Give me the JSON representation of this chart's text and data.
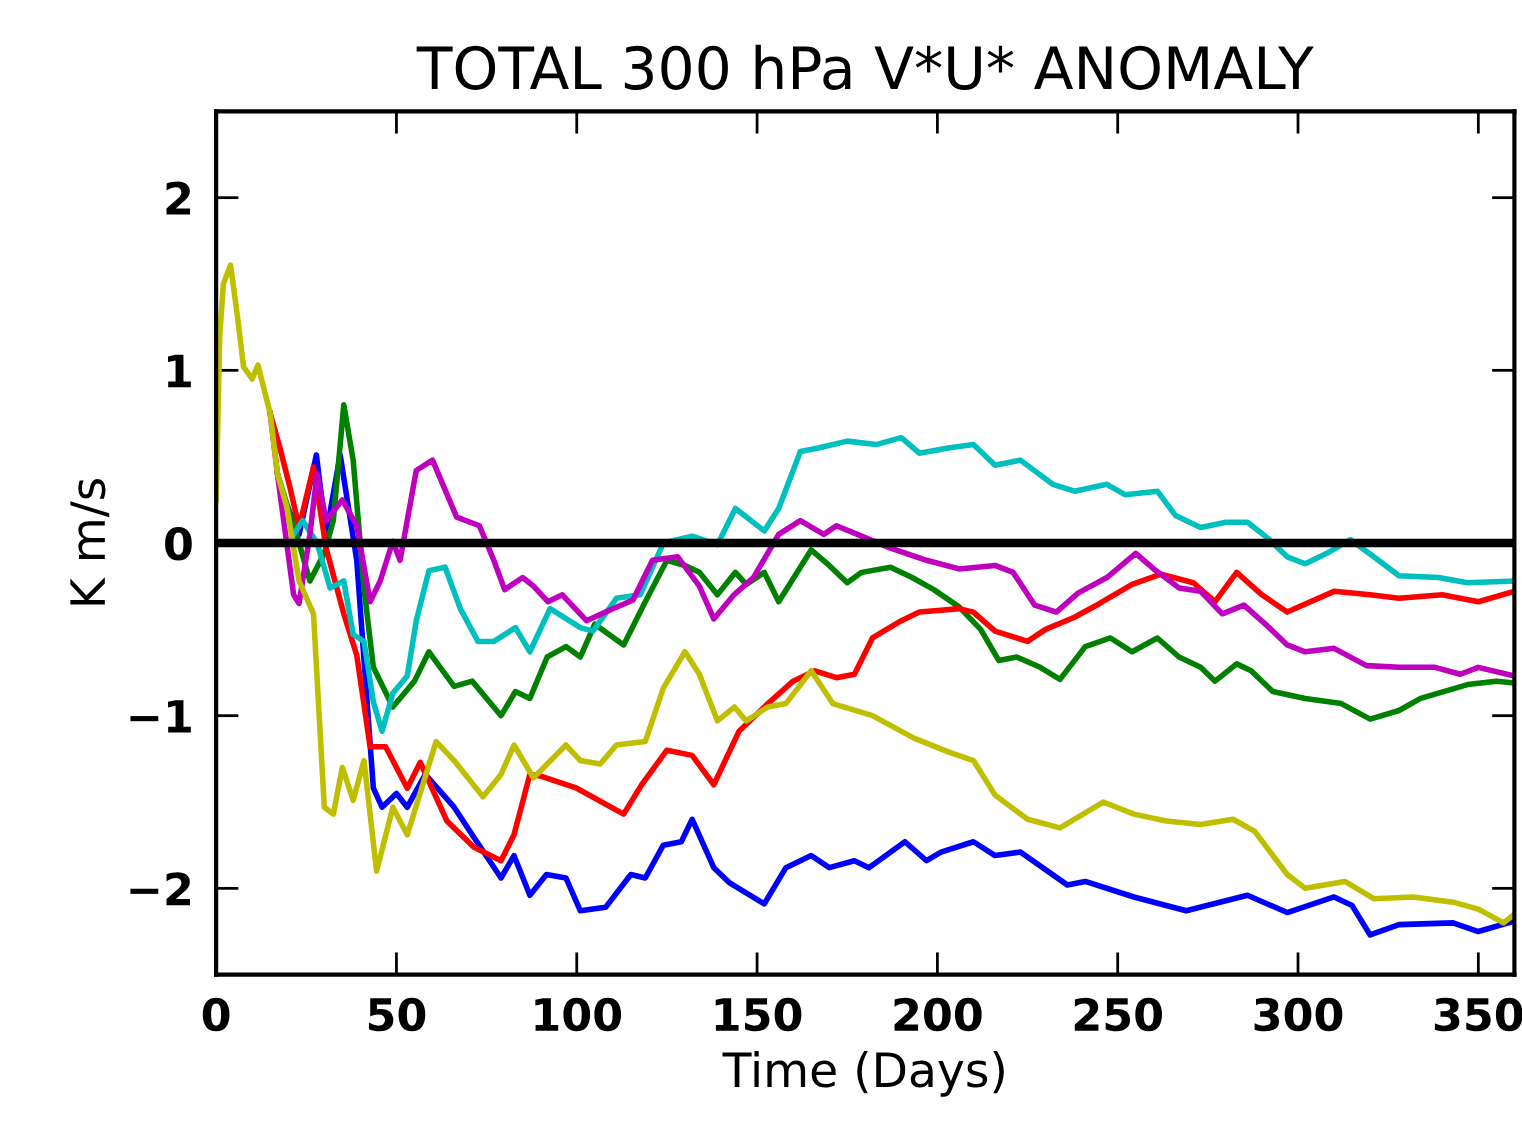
{
  "chart_data": {
    "type": "line",
    "title": "TOTAL 300 hPa V*U* ANOMALY",
    "xlabel": "Time (Days)",
    "ylabel": "K m/s",
    "xlim": [
      0,
      360
    ],
    "ylim": [
      -2.5,
      2.5
    ],
    "xticks": [
      0,
      50,
      100,
      150,
      200,
      250,
      300,
      350
    ],
    "yticks": [
      {
        "value": -2,
        "label": "−2"
      },
      {
        "value": -1,
        "label": "−1"
      },
      0,
      1,
      2
    ],
    "grid": false,
    "legend": false,
    "marker": "none",
    "line_style": "solid",
    "ref_lines": [
      {
        "axis": "y",
        "value": 0,
        "color": "#000000"
      }
    ],
    "series": [
      {
        "color": "#0000ff",
        "x": [
          20,
          23,
          27.8,
          30.5,
          34.4,
          39,
          42,
          43.6,
          46,
          50,
          53,
          58,
          66,
          71,
          79,
          82.6,
          87,
          91.6,
          97,
          101,
          108,
          115,
          119,
          124,
          129,
          132,
          138,
          142.5,
          152,
          158,
          165,
          170,
          177,
          181,
          191,
          197,
          201,
          210,
          216,
          223,
          236,
          241,
          254.5,
          269,
          286,
          297,
          310,
          315,
          320,
          328,
          343,
          350,
          360
        ],
        "values": [
          0.2,
          0.05,
          0.51,
          0.05,
          0.51,
          -0.1,
          -0.96,
          -1.42,
          -1.53,
          -1.45,
          -1.53,
          -1.34,
          -1.53,
          -1.69,
          -1.94,
          -1.81,
          -2.04,
          -1.92,
          -1.94,
          -2.13,
          -2.11,
          -1.92,
          -1.94,
          -1.75,
          -1.73,
          -1.6,
          -1.88,
          -1.97,
          -2.09,
          -1.88,
          -1.81,
          -1.88,
          -1.84,
          -1.88,
          -1.73,
          -1.84,
          -1.79,
          -1.73,
          -1.81,
          -1.79,
          -1.98,
          -1.96,
          -2.05,
          -2.13,
          -2.04,
          -2.14,
          -2.05,
          -2.1,
          -2.27,
          -2.21,
          -2.2,
          -2.25,
          -2.19
        ]
      },
      {
        "color": "#008000",
        "x": [
          17,
          20,
          23,
          26,
          30,
          32.5,
          35.4,
          38,
          41,
          43.6,
          49,
          55,
          59,
          66,
          71,
          79,
          83,
          87,
          91.8,
          97,
          101,
          105,
          113,
          119,
          125,
          130,
          134,
          139,
          144,
          147,
          152,
          156,
          165,
          170,
          175,
          179,
          187,
          193,
          199,
          206,
          212,
          217,
          222,
          228.5,
          234,
          241,
          248,
          254,
          261,
          267,
          273,
          277,
          283,
          287,
          293,
          302,
          312,
          320,
          328,
          334,
          347,
          355,
          360
        ],
        "values": [
          0.4,
          0.2,
          0.0,
          -0.22,
          -0.06,
          0.13,
          0.8,
          0.48,
          -0.26,
          -0.72,
          -0.95,
          -0.8,
          -0.63,
          -0.83,
          -0.8,
          -1.0,
          -0.86,
          -0.9,
          -0.66,
          -0.6,
          -0.66,
          -0.47,
          -0.59,
          -0.34,
          -0.1,
          -0.13,
          -0.17,
          -0.3,
          -0.17,
          -0.24,
          -0.17,
          -0.34,
          -0.04,
          -0.13,
          -0.23,
          -0.17,
          -0.14,
          -0.2,
          -0.27,
          -0.37,
          -0.5,
          -0.68,
          -0.66,
          -0.72,
          -0.79,
          -0.6,
          -0.55,
          -0.63,
          -0.55,
          -0.66,
          -0.72,
          -0.8,
          -0.7,
          -0.74,
          -0.86,
          -0.9,
          -0.93,
          -1.02,
          -0.97,
          -0.9,
          -0.82,
          -0.8,
          -0.81
        ]
      },
      {
        "color": "#ff0000",
        "x": [
          15,
          17.7,
          20.5,
          23,
          27,
          30.5,
          35.4,
          39,
          42.7,
          47,
          53,
          56.6,
          64,
          71.4,
          79,
          82.6,
          87,
          90,
          100,
          113,
          118,
          125,
          132,
          138,
          145,
          153,
          160,
          166,
          172,
          177,
          182,
          190,
          195,
          201,
          206,
          210,
          216,
          225,
          230,
          238,
          245,
          254,
          262,
          271,
          277,
          283,
          290,
          297,
          310,
          320,
          328,
          340,
          350,
          360
        ],
        "values": [
          0.75,
          0.55,
          0.32,
          0.09,
          0.44,
          -0.03,
          -0.41,
          -0.65,
          -1.18,
          -1.18,
          -1.42,
          -1.27,
          -1.61,
          -1.76,
          -1.84,
          -1.69,
          -1.34,
          -1.35,
          -1.42,
          -1.57,
          -1.4,
          -1.2,
          -1.23,
          -1.4,
          -1.09,
          -0.93,
          -0.8,
          -0.74,
          -0.78,
          -0.76,
          -0.55,
          -0.45,
          -0.4,
          -0.39,
          -0.38,
          -0.4,
          -0.51,
          -0.57,
          -0.5,
          -0.43,
          -0.35,
          -0.24,
          -0.18,
          -0.23,
          -0.34,
          -0.17,
          -0.3,
          -0.4,
          -0.28,
          -0.3,
          -0.32,
          -0.3,
          -0.34,
          -0.28
        ]
      },
      {
        "color": "#00bfbf",
        "x": [
          21.5,
          24,
          28,
          31.6,
          35.4,
          38,
          41,
          43.6,
          46,
          49,
          53,
          55.5,
          59,
          63.5,
          67.7,
          72.6,
          77,
          83,
          87,
          92.6,
          101,
          104.5,
          111,
          117.6,
          124,
          132,
          139,
          144,
          152,
          156,
          162,
          167,
          175,
          183,
          190,
          195,
          203,
          210,
          216,
          223,
          232,
          238,
          247,
          252,
          261,
          266,
          273,
          280,
          286,
          291.5,
          297,
          302,
          308,
          314.5,
          321,
          328,
          339,
          347,
          360
        ],
        "values": [
          0.05,
          0.13,
          0.0,
          -0.26,
          -0.22,
          -0.53,
          -0.57,
          -0.92,
          -1.09,
          -0.87,
          -0.77,
          -0.45,
          -0.16,
          -0.14,
          -0.38,
          -0.57,
          -0.57,
          -0.49,
          -0.63,
          -0.38,
          -0.49,
          -0.51,
          -0.32,
          -0.3,
          0.0,
          0.04,
          -0.01,
          0.2,
          0.07,
          0.2,
          0.53,
          0.55,
          0.59,
          0.57,
          0.61,
          0.52,
          0.55,
          0.57,
          0.45,
          0.48,
          0.34,
          0.3,
          0.34,
          0.28,
          0.3,
          0.16,
          0.09,
          0.12,
          0.12,
          0.03,
          -0.08,
          -0.12,
          -0.06,
          0.02,
          -0.08,
          -0.19,
          -0.2,
          -0.23,
          -0.22
        ]
      },
      {
        "color": "#bf00bf",
        "x": [
          15,
          17,
          21.5,
          23,
          26,
          28,
          30.5,
          35,
          39,
          42.7,
          45.5,
          49,
          51,
          55.5,
          60,
          66.7,
          73,
          77,
          80,
          85,
          88,
          92,
          96,
          102.7,
          108,
          115.6,
          121,
          128,
          134,
          138,
          143.6,
          149,
          156,
          162,
          168.5,
          172,
          179,
          187,
          197,
          206,
          216,
          221,
          227,
          233,
          239,
          247,
          255,
          260,
          267,
          273,
          279,
          285,
          291.5,
          297,
          302,
          310,
          319,
          328,
          338,
          345,
          350,
          360
        ],
        "values": [
          0.75,
          0.4,
          -0.3,
          -0.35,
          0.05,
          0.4,
          0.13,
          0.25,
          0.1,
          -0.34,
          -0.22,
          0.01,
          -0.1,
          0.42,
          0.48,
          0.15,
          0.1,
          -0.1,
          -0.27,
          -0.2,
          -0.25,
          -0.34,
          -0.3,
          -0.45,
          -0.4,
          -0.33,
          -0.1,
          -0.08,
          -0.25,
          -0.44,
          -0.3,
          -0.2,
          0.05,
          0.13,
          0.05,
          0.1,
          0.04,
          -0.03,
          -0.1,
          -0.15,
          -0.13,
          -0.17,
          -0.36,
          -0.4,
          -0.29,
          -0.2,
          -0.06,
          -0.15,
          -0.26,
          -0.28,
          -0.41,
          -0.36,
          -0.48,
          -0.59,
          -0.63,
          -0.61,
          -0.71,
          -0.72,
          -0.72,
          -0.76,
          -0.72,
          -0.77
        ]
      },
      {
        "color": "#bfbf00",
        "x": [
          0,
          1,
          2,
          4,
          6,
          7.6,
          10,
          11.6,
          15,
          17,
          19.6,
          23,
          27,
          30,
          32.5,
          35,
          38,
          41,
          44.5,
          49,
          53,
          61,
          66,
          74,
          79,
          82.6,
          88,
          97,
          101,
          106.5,
          111,
          119,
          124,
          130,
          134,
          139,
          143.7,
          147,
          153,
          158,
          165,
          171,
          182,
          193.5,
          203,
          210,
          216,
          225,
          234,
          246,
          254.5,
          263.5,
          273,
          282,
          288,
          297,
          302,
          313,
          321,
          332,
          343,
          350,
          357,
          360
        ],
        "values": [
          0.25,
          1.2,
          1.5,
          1.61,
          1.3,
          1.02,
          0.95,
          1.03,
          0.75,
          0.4,
          0.21,
          -0.22,
          -0.41,
          -1.53,
          -1.57,
          -1.3,
          -1.49,
          -1.26,
          -1.9,
          -1.53,
          -1.69,
          -1.15,
          -1.26,
          -1.47,
          -1.34,
          -1.17,
          -1.36,
          -1.17,
          -1.26,
          -1.28,
          -1.17,
          -1.15,
          -0.84,
          -0.63,
          -0.76,
          -1.03,
          -0.95,
          -1.03,
          -0.95,
          -0.93,
          -0.74,
          -0.93,
          -1.0,
          -1.13,
          -1.21,
          -1.26,
          -1.46,
          -1.6,
          -1.65,
          -1.5,
          -1.57,
          -1.61,
          -1.63,
          -1.6,
          -1.67,
          -1.92,
          -2.0,
          -1.96,
          -2.06,
          -2.05,
          -2.08,
          -2.12,
          -2.2,
          -2.15
        ]
      }
    ]
  }
}
